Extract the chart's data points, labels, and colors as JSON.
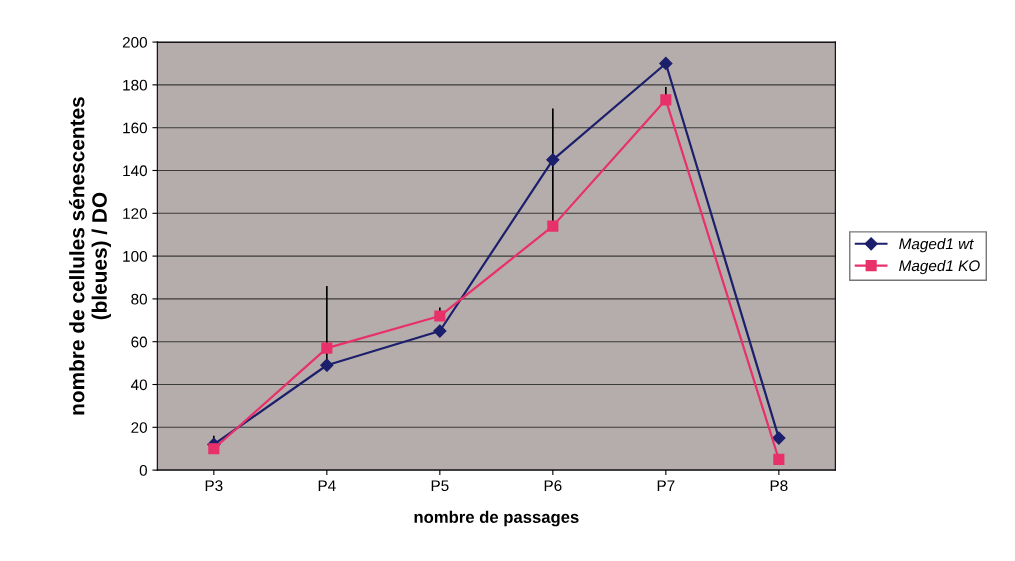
{
  "chart_data": {
    "type": "line",
    "xlabel": "nombre de passages",
    "ylabel": "nombre de cellules sénescentes\n(bleues) / DO",
    "categories": [
      "P3",
      "P4",
      "P5",
      "P6",
      "P7",
      "P8"
    ],
    "series": [
      {
        "name": "Maged1 wt",
        "color": "#1c1f6b",
        "marker": "diamond",
        "values": [
          12,
          49,
          65,
          145,
          190,
          15
        ],
        "errors": [
          [
            12,
            16
          ],
          [
            49,
            86
          ],
          null,
          null,
          null,
          null
        ]
      },
      {
        "name": "Maged1 KO",
        "color": "#e8306a",
        "marker": "square",
        "values": [
          10,
          57,
          72,
          114,
          173,
          5
        ],
        "errors": [
          null,
          null,
          [
            72,
            76
          ],
          [
            114,
            169
          ],
          [
            173,
            179
          ],
          null
        ]
      }
    ],
    "ylim": [
      0,
      200
    ],
    "yticks": [
      0,
      20,
      40,
      60,
      80,
      100,
      120,
      140,
      160,
      180,
      200
    ],
    "grid": "y",
    "legend": "right"
  }
}
